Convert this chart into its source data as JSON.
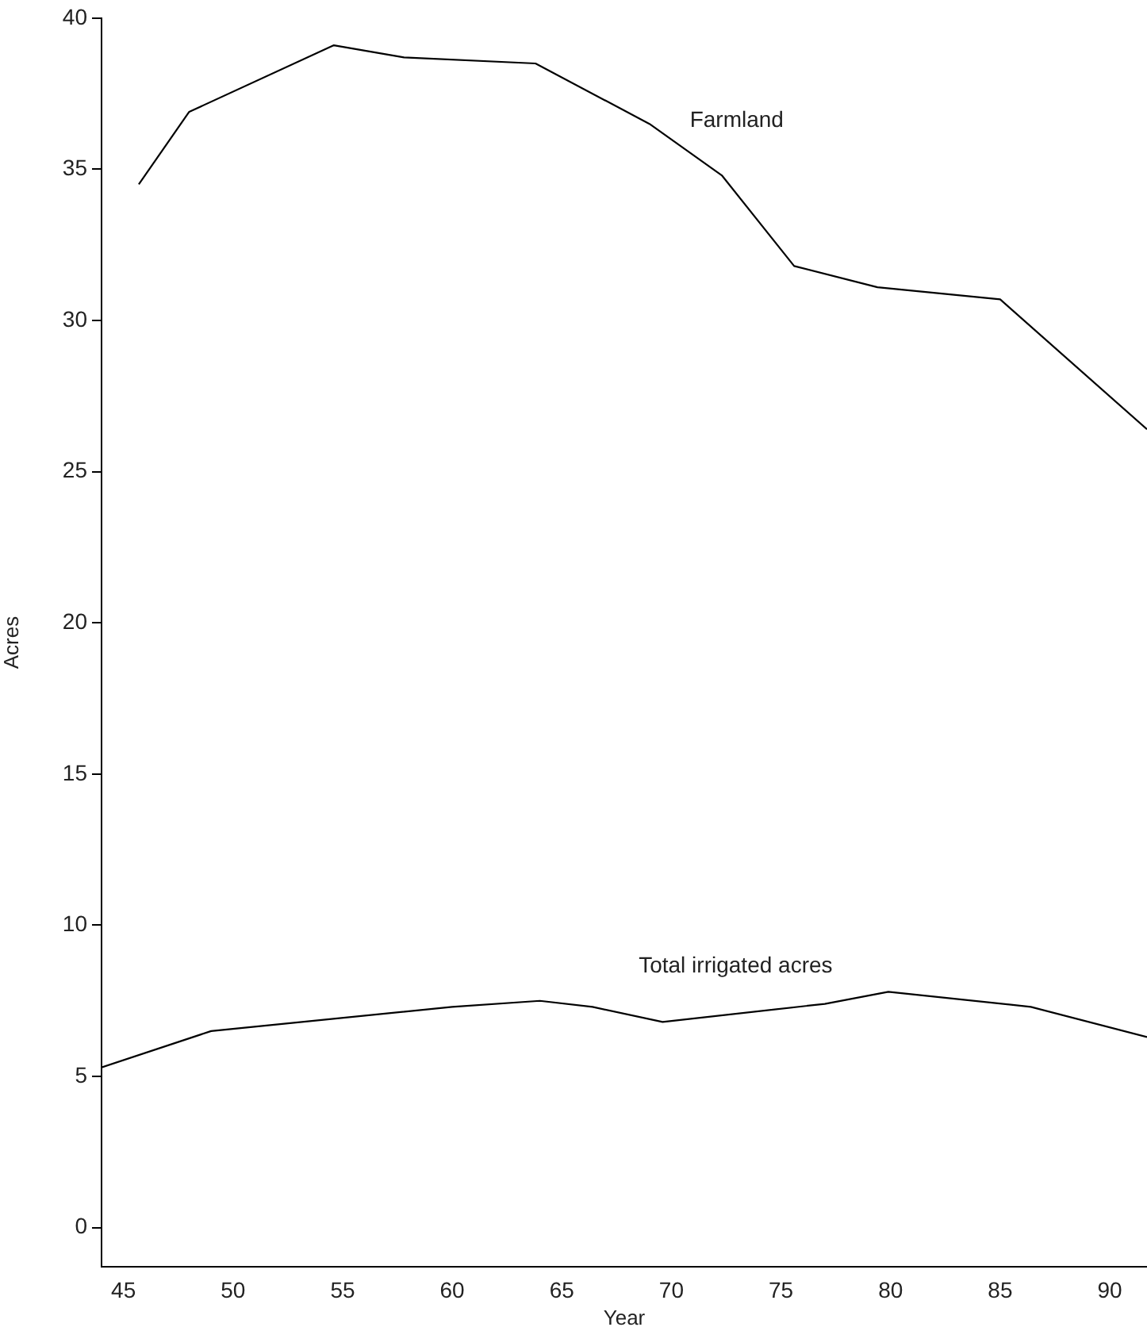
{
  "chart_data": {
    "type": "line",
    "xlabel": "Year",
    "ylabel": "Acres",
    "xlim": [
      44,
      91.7
    ],
    "xticks": [
      45,
      50,
      55,
      60,
      65,
      70,
      75,
      80,
      85,
      90
    ],
    "ylim": [
      -1.3,
      40
    ],
    "yticks": [
      0,
      5,
      10,
      15,
      20,
      25,
      30,
      35,
      40
    ],
    "grid": false,
    "legend": false,
    "marker": "none",
    "line_style": "solid",
    "series": [
      {
        "name": "Farmland",
        "color": "#000000",
        "x": [
          45.7,
          48,
          54.6,
          57.8,
          63.8,
          69,
          72.3,
          75.6,
          79.4,
          85,
          91.7
        ],
        "values": [
          34.5,
          36.9,
          39.1,
          38.7,
          38.5,
          36.5,
          34.8,
          31.8,
          31.1,
          30.7,
          26.4
        ]
      },
      {
        "name": "Total irrigated acres",
        "color": "#000000",
        "x": [
          44,
          49,
          60,
          64,
          66.4,
          69.6,
          77,
          79.9,
          86.4,
          91.7
        ],
        "values": [
          5.3,
          6.5,
          7.3,
          7.5,
          7.3,
          6.8,
          7.4,
          7.8,
          7.3,
          6.3
        ]
      }
    ]
  }
}
